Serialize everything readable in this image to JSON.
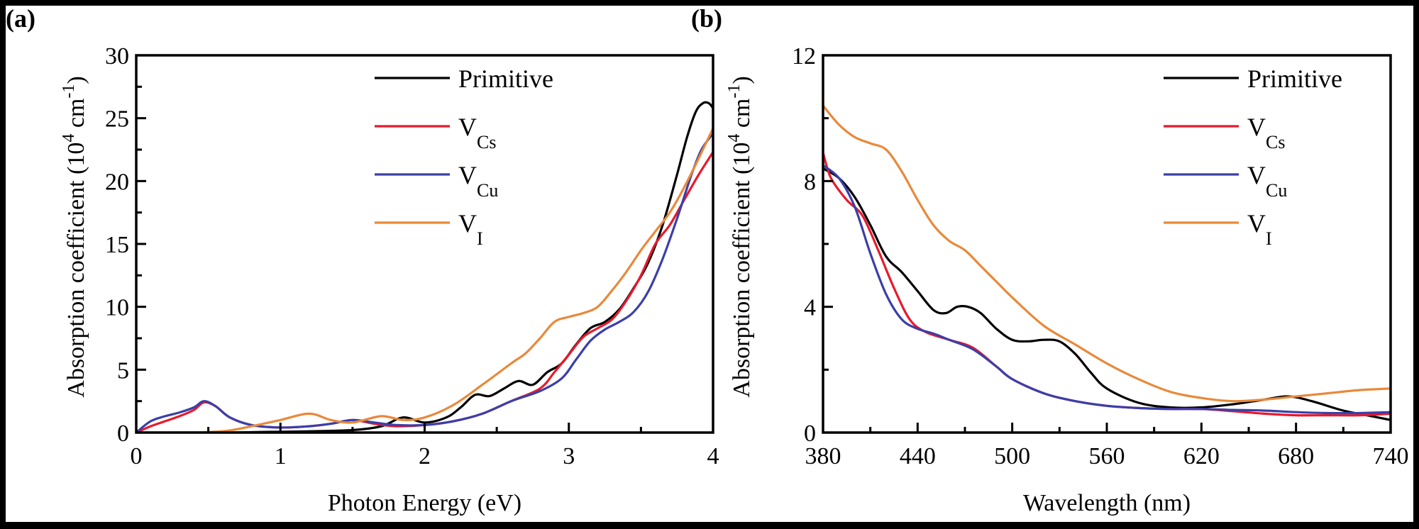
{
  "chart_data": [
    {
      "panel_label": "(a)",
      "type": "line",
      "title": "",
      "xlabel": "Photon Energy (eV)",
      "ylabel_parts": {
        "base": "Absorption coefficient (10",
        "sup1": "4",
        "mid": " cm",
        "sup2": "-1",
        "end": ")"
      },
      "ylabel": "Absorption coefficient (10^4 cm^-1)",
      "xlim": [
        0,
        4
      ],
      "ylim": [
        0,
        30
      ],
      "xticks": [
        0,
        1,
        2,
        3,
        4
      ],
      "xtick_labels": [
        "0",
        "1",
        "2",
        "3",
        "4"
      ],
      "xminor": [
        0.5,
        1.5,
        2.5,
        3.5
      ],
      "yticks": [
        0,
        5,
        10,
        15,
        20,
        25,
        30
      ],
      "ytick_labels": [
        "0",
        "5",
        "10",
        "15",
        "20",
        "25",
        "30"
      ],
      "yminor": [
        2.5,
        7.5,
        12.5,
        17.5,
        22.5,
        27.5
      ],
      "grid": false,
      "legend_position": "top-right",
      "series": [
        {
          "name": "Primitive",
          "label_main": "Primitive",
          "label_sub": "",
          "color": "#000000",
          "x": [
            0,
            0.3,
            0.6,
            0.9,
            1.2,
            1.5,
            1.7,
            1.85,
            2.0,
            2.15,
            2.25,
            2.35,
            2.45,
            2.55,
            2.65,
            2.75,
            2.85,
            2.95,
            3.05,
            3.15,
            3.25,
            3.35,
            3.45,
            3.55,
            3.65,
            3.75,
            3.82,
            3.88,
            3.93,
            3.97,
            4.0
          ],
          "y": [
            0,
            0,
            0,
            0.05,
            0.1,
            0.2,
            0.5,
            1.2,
            0.8,
            1.2,
            2.0,
            3.0,
            2.9,
            3.5,
            4.1,
            3.8,
            4.8,
            5.5,
            7.0,
            8.3,
            8.8,
            9.8,
            11.5,
            13.5,
            16.5,
            20.5,
            23.5,
            25.5,
            26.2,
            26.2,
            25.8
          ]
        },
        {
          "name": "V_Cs",
          "label_main": "V",
          "label_sub": "Cs",
          "color": "#e8192c",
          "x": [
            0,
            0.1,
            0.2,
            0.3,
            0.4,
            0.47,
            0.55,
            0.65,
            0.8,
            1.0,
            1.2,
            1.35,
            1.5,
            1.65,
            1.8,
            2.0,
            2.2,
            2.4,
            2.6,
            2.8,
            2.9,
            3.0,
            3.1,
            3.2,
            3.3,
            3.4,
            3.5,
            3.6,
            3.7,
            3.8,
            3.9,
            4.0
          ],
          "y": [
            0,
            0.5,
            0.9,
            1.3,
            1.8,
            2.4,
            2.1,
            1.2,
            0.6,
            0.4,
            0.5,
            0.7,
            1.0,
            0.7,
            0.5,
            0.6,
            0.9,
            1.5,
            2.5,
            3.5,
            4.8,
            6.2,
            7.6,
            8.3,
            9.0,
            10.5,
            12.5,
            15.0,
            16.5,
            18.5,
            20.5,
            22.3
          ]
        },
        {
          "name": "V_Cu",
          "label_main": "V",
          "label_sub": "Cu",
          "color": "#3a3fa8",
          "x": [
            0,
            0.1,
            0.2,
            0.3,
            0.4,
            0.47,
            0.55,
            0.65,
            0.8,
            1.0,
            1.2,
            1.35,
            1.5,
            1.65,
            1.8,
            2.0,
            2.2,
            2.4,
            2.6,
            2.8,
            2.95,
            3.05,
            3.15,
            3.25,
            3.35,
            3.45,
            3.55,
            3.65,
            3.75,
            3.85,
            3.92,
            4.0
          ],
          "y": [
            0,
            0.9,
            1.3,
            1.6,
            2.0,
            2.5,
            2.1,
            1.2,
            0.6,
            0.4,
            0.5,
            0.7,
            1.0,
            0.8,
            0.6,
            0.6,
            0.9,
            1.5,
            2.5,
            3.3,
            4.3,
            5.8,
            7.3,
            8.2,
            8.8,
            9.6,
            11.2,
            13.8,
            17.0,
            20.5,
            22.5,
            23.8
          ]
        },
        {
          "name": "V_I",
          "label_main": "V",
          "label_sub": "I",
          "color": "#e8893a",
          "x": [
            0,
            0.3,
            0.6,
            0.8,
            1.0,
            1.2,
            1.35,
            1.5,
            1.7,
            1.85,
            2.0,
            2.2,
            2.4,
            2.6,
            2.7,
            2.8,
            2.9,
            3.0,
            3.1,
            3.2,
            3.3,
            3.4,
            3.5,
            3.6,
            3.7,
            3.8,
            3.9,
            4.0
          ],
          "y": [
            0,
            0,
            0.1,
            0.5,
            1.0,
            1.5,
            1.0,
            0.8,
            1.3,
            1.0,
            1.2,
            2.2,
            3.8,
            5.5,
            6.3,
            7.5,
            8.8,
            9.2,
            9.5,
            10.0,
            11.3,
            12.8,
            14.5,
            16.0,
            17.5,
            19.5,
            21.8,
            24.2
          ]
        }
      ]
    },
    {
      "panel_label": "(b)",
      "type": "line",
      "title": "",
      "xlabel": "Wavelength (nm)",
      "ylabel_parts": {
        "base": "Absorption coefficient (10",
        "sup1": "4",
        "mid": " cm",
        "sup2": "-1",
        "end": ")"
      },
      "ylabel": "Absorption coefficient (10^4 cm^-1)",
      "xlim": [
        380,
        740
      ],
      "ylim": [
        0,
        12
      ],
      "xticks": [
        380,
        440,
        500,
        560,
        620,
        680,
        740
      ],
      "xtick_labels": [
        "380",
        "440",
        "500",
        "560",
        "620",
        "680",
        "740"
      ],
      "xminor": [
        410,
        470,
        530,
        590,
        650,
        710
      ],
      "yticks": [
        0,
        4,
        8,
        12
      ],
      "ytick_labels": [
        "0",
        "4",
        "8",
        "12"
      ],
      "yminor": [
        2,
        6,
        10
      ],
      "grid": false,
      "legend_position": "top-right",
      "series": [
        {
          "name": "Primitive",
          "label_main": "Primitive",
          "label_sub": "",
          "color": "#000000",
          "x": [
            380,
            390,
            400,
            410,
            420,
            430,
            440,
            450,
            458,
            465,
            472,
            480,
            490,
            500,
            510,
            520,
            530,
            540,
            550,
            560,
            580,
            600,
            620,
            640,
            660,
            675,
            690,
            710,
            730,
            740
          ],
          "y": [
            8.4,
            8.1,
            7.5,
            6.6,
            5.6,
            5.1,
            4.5,
            3.9,
            3.8,
            4.0,
            4.0,
            3.8,
            3.3,
            2.95,
            2.9,
            2.95,
            2.9,
            2.5,
            1.9,
            1.4,
            0.95,
            0.8,
            0.8,
            0.9,
            1.05,
            1.15,
            1.0,
            0.7,
            0.5,
            0.4
          ]
        },
        {
          "name": "V_Cs",
          "label_main": "V",
          "label_sub": "Cs",
          "color": "#e8192c",
          "x": [
            380,
            385,
            395,
            405,
            415,
            425,
            435,
            445,
            460,
            475,
            490,
            500,
            520,
            540,
            560,
            580,
            600,
            620,
            640,
            660,
            680,
            700,
            720,
            740
          ],
          "y": [
            8.9,
            8.1,
            7.4,
            6.9,
            5.8,
            4.6,
            3.6,
            3.2,
            2.95,
            2.7,
            2.1,
            1.7,
            1.25,
            1.0,
            0.85,
            0.78,
            0.75,
            0.75,
            0.68,
            0.6,
            0.55,
            0.55,
            0.55,
            0.6
          ]
        },
        {
          "name": "V_Cu",
          "label_main": "V",
          "label_sub": "Cu",
          "color": "#3a3fa8",
          "x": [
            380,
            390,
            400,
            410,
            420,
            430,
            440,
            450,
            460,
            475,
            490,
            500,
            520,
            540,
            560,
            580,
            600,
            620,
            640,
            660,
            680,
            700,
            720,
            740
          ],
          "y": [
            8.5,
            8.1,
            7.2,
            5.7,
            4.4,
            3.6,
            3.3,
            3.15,
            2.95,
            2.65,
            2.1,
            1.7,
            1.25,
            1.0,
            0.85,
            0.78,
            0.75,
            0.75,
            0.72,
            0.7,
            0.65,
            0.62,
            0.62,
            0.65
          ]
        },
        {
          "name": "V_I",
          "label_main": "V",
          "label_sub": "I",
          "color": "#e8893a",
          "x": [
            380,
            390,
            400,
            410,
            420,
            430,
            440,
            450,
            460,
            470,
            480,
            490,
            500,
            520,
            540,
            560,
            580,
            600,
            620,
            640,
            660,
            680,
            700,
            720,
            740
          ],
          "y": [
            10.4,
            9.8,
            9.4,
            9.2,
            9.0,
            8.3,
            7.4,
            6.6,
            6.1,
            5.8,
            5.3,
            4.8,
            4.3,
            3.4,
            2.8,
            2.2,
            1.7,
            1.3,
            1.1,
            1.0,
            1.05,
            1.15,
            1.25,
            1.35,
            1.4
          ]
        }
      ]
    }
  ]
}
